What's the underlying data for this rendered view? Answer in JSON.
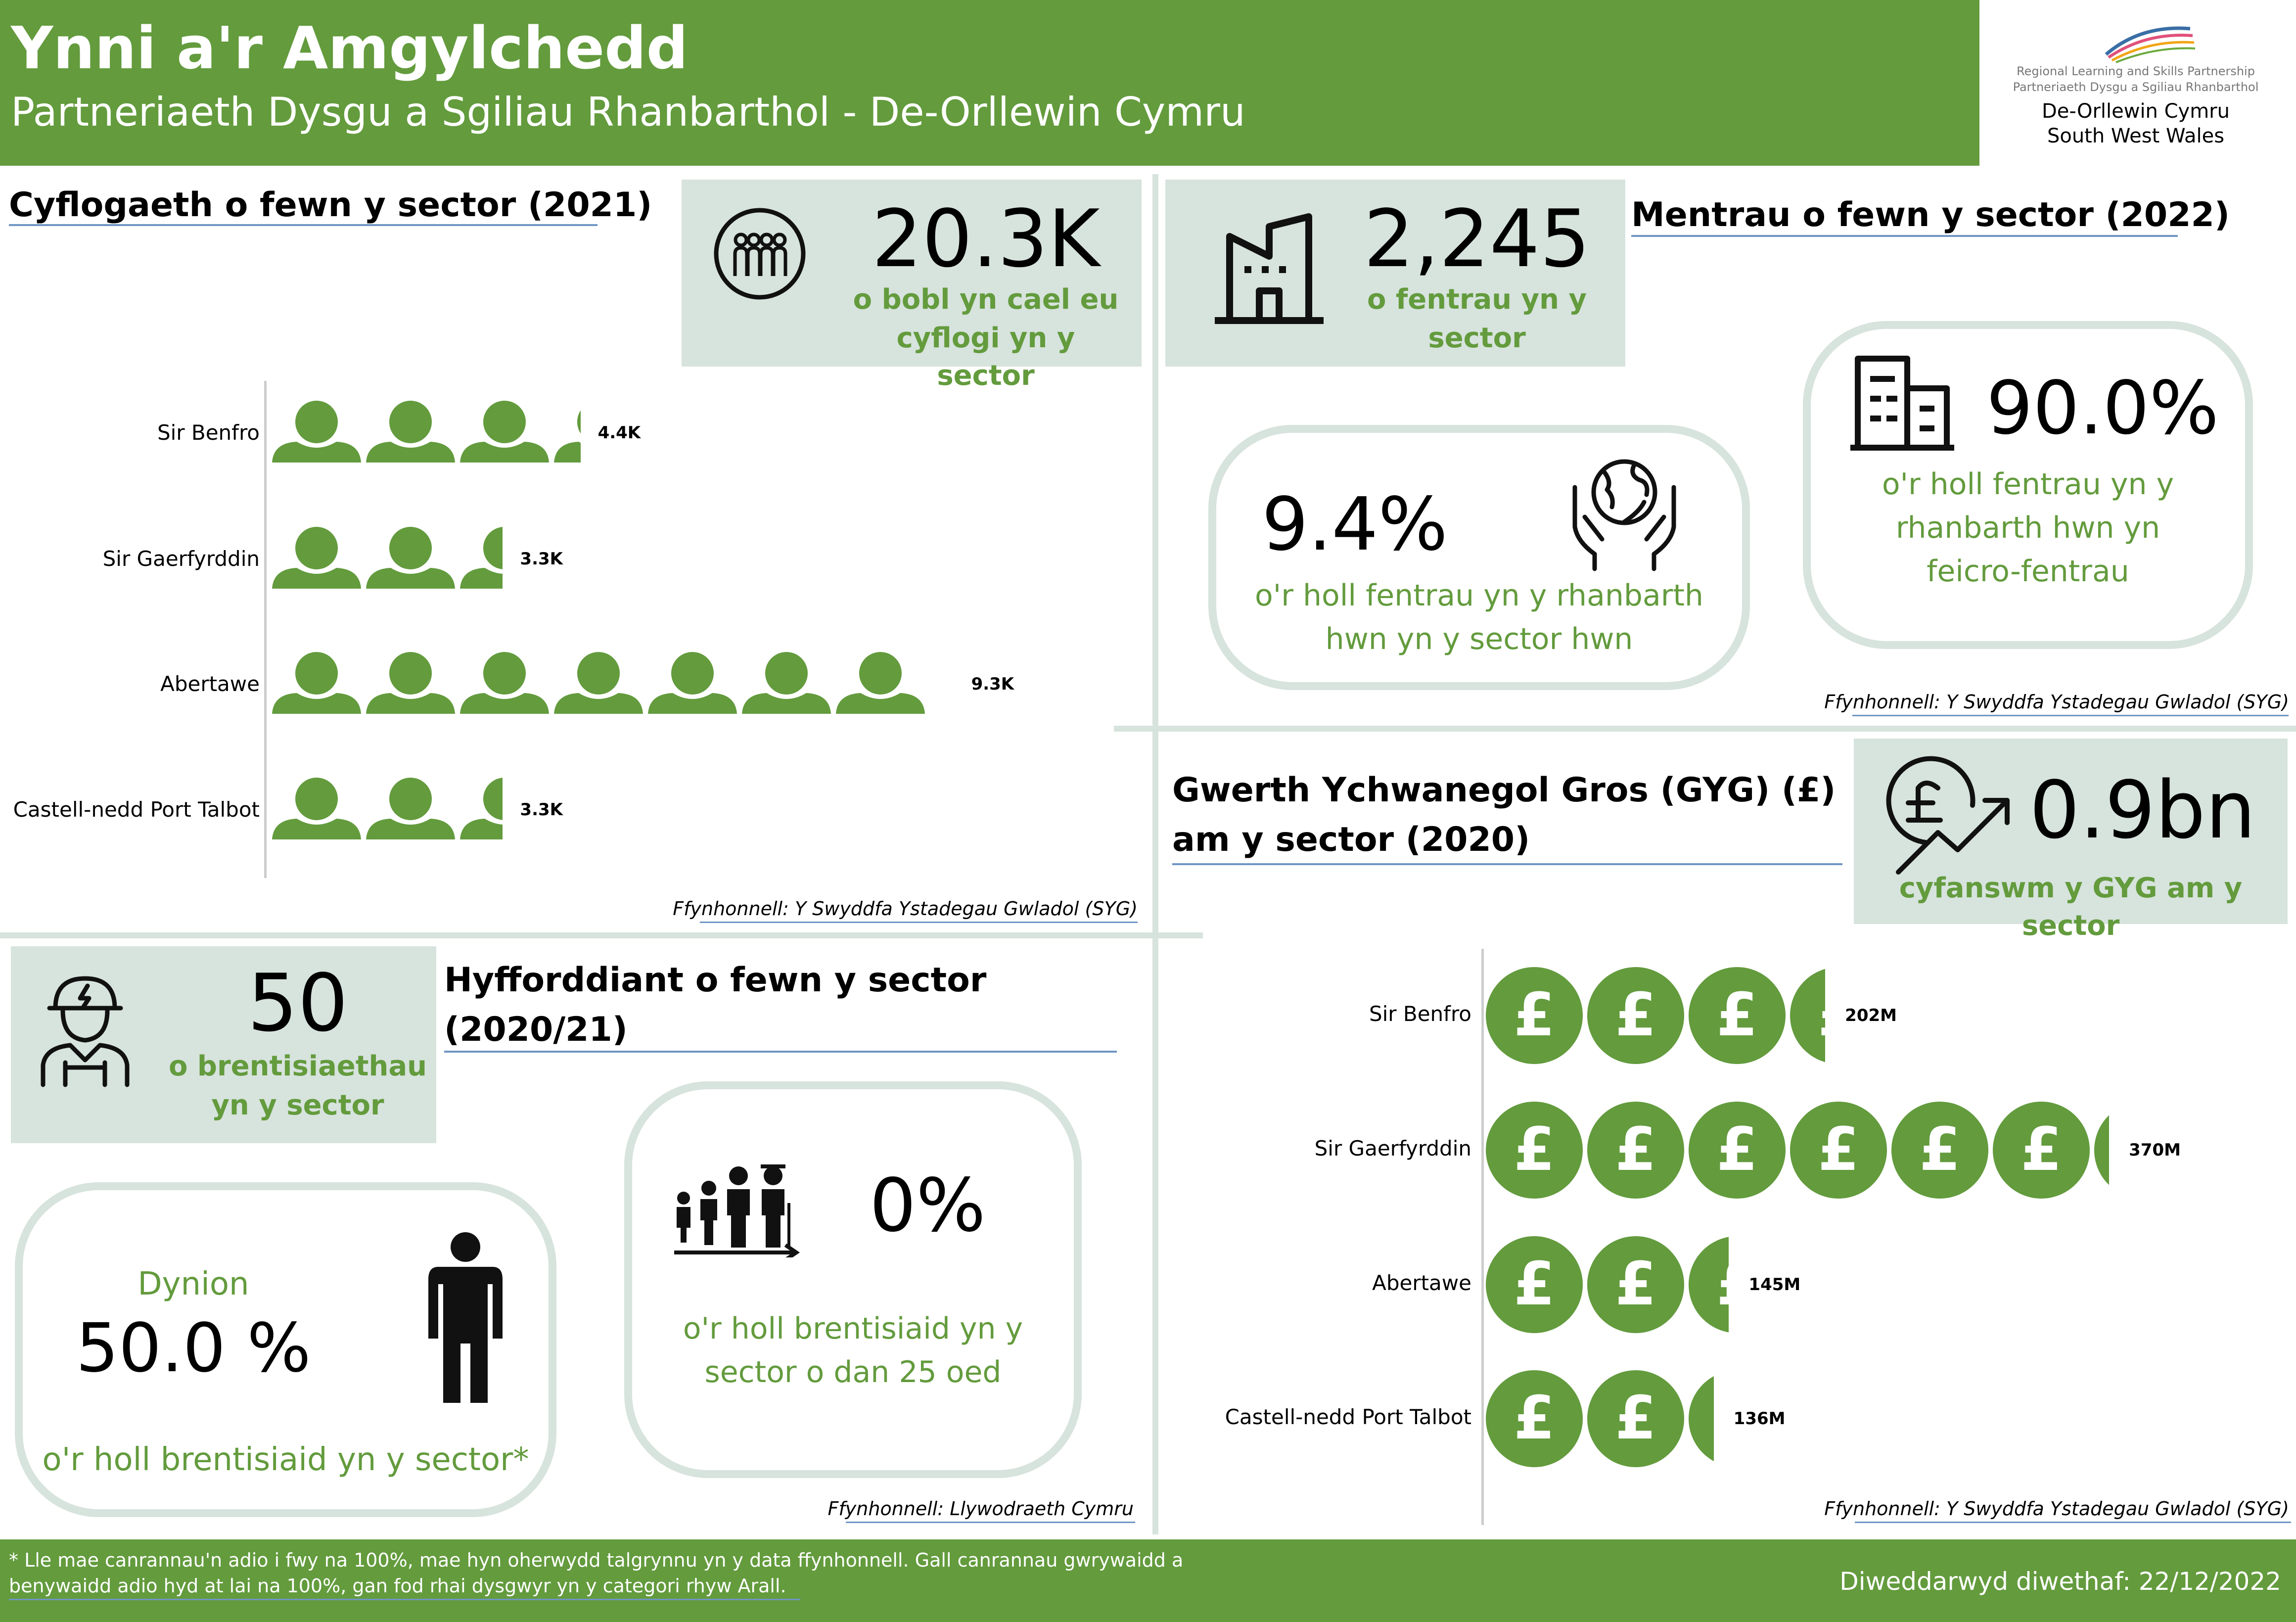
{
  "header": {
    "title": "Ynni a'r Amgylchedd",
    "subtitle": "Partneriaeth Dysgu a Sgiliau Rhanbarthol - De-Orllewin Cymru",
    "logo": {
      "line1": "Regional Learning and Skills Partnership",
      "line2": "Partneriaeth Dysgu a Sgiliau Rhanbarthol",
      "line3": "De-Orllewin Cymru",
      "line4": "South West Wales"
    }
  },
  "employment": {
    "title": "Cyflogaeth o fewn y sector (2021)",
    "kpi_value": "20.3K",
    "kpi_label_1": "o bobl yn cael eu",
    "kpi_label_2": "cyflogi yn y sector",
    "source": "Ffynhonnell: Y Swyddfa Ystadegau Gwladol (SYG)"
  },
  "enterprises": {
    "title": "Mentrau o fewn y sector (2022)",
    "kpi_value": "2,245",
    "kpi_label_1": "o fentrau yn y",
    "kpi_label_2": "sector",
    "share_value": "9.4%",
    "share_label_1": "o'r holl fentrau yn y rhanbarth",
    "share_label_2": "hwn yn y sector hwn",
    "micro_value": "90.0%",
    "micro_label_1": "o'r holl fentrau yn y",
    "micro_label_2": "rhanbarth hwn yn",
    "micro_label_3": "feicro-fentrau",
    "source": "Ffynhonnell: Y Swyddfa Ystadegau Gwladol (SYG)"
  },
  "gva": {
    "title_1": "Gwerth Ychwanegol Gros (GYG) (£)",
    "title_2": "am y sector (2020)",
    "kpi_value": "0.9bn",
    "kpi_label": "cyfanswm y GYG am y sector",
    "source": "Ffynhonnell: Y Swyddfa Ystadegau Gwladol (SYG)"
  },
  "training": {
    "title_1": "Hyfforddiant o fewn y sector",
    "title_2": "(2020/21)",
    "kpi_value": "50",
    "kpi_label_1": "o brentisiaethau",
    "kpi_label_2": "yn y sector",
    "gender_label": "Dynion",
    "gender_value": "50.0 %",
    "gender_desc": "o'r holl brentisiaid yn y sector*",
    "youth_value": "0%",
    "youth_label_1": "o'r holl brentisiaid yn y",
    "youth_label_2": "sector o dan 25 oed",
    "source": "Ffynhonnell: Llywodraeth Cymru"
  },
  "footer": {
    "note_1": "* Lle mae canrannau'n adio i fwy na 100%, mae hyn oherwydd talgrynnu yn y data ffynhonnell. Gall canrannau gwrywaidd a",
    "note_2": "benywaidd adio hyd at lai na 100%, gan fod rhai dysgwyr yn y categori rhyw Arall.",
    "updated": "Diweddarwyd diwethaf: 22/12/2022"
  },
  "colors": {
    "accent": "#639b3d",
    "panel": "#d7e3dd",
    "underline": "#6f95c3"
  },
  "icons": [
    "crowd-icon",
    "building-icon",
    "office-icon",
    "globe-hands-icon",
    "pound-growth-icon",
    "worker-icon",
    "person-icon",
    "family-icon"
  ],
  "chart_data": [
    {
      "type": "bar",
      "categories": [
        "Sir Benfro",
        "Sir Gaerfyrddin",
        "Abertawe",
        "Castell-nedd Port Talbot"
      ],
      "values": [
        4.4,
        3.3,
        9.3,
        3.3
      ],
      "labels": [
        "4.4K",
        "3.3K",
        "9.3K",
        "3.3K"
      ],
      "unit": "K"
    },
    {
      "type": "bar",
      "categories": [
        "Sir Benfro",
        "Sir Gaerfyrddin",
        "Abertawe",
        "Castell-nedd Port Talbot"
      ],
      "values": [
        202,
        370,
        145,
        136
      ],
      "labels": [
        "202M",
        "370M",
        "145M",
        "136M"
      ],
      "unit": "M"
    }
  ]
}
